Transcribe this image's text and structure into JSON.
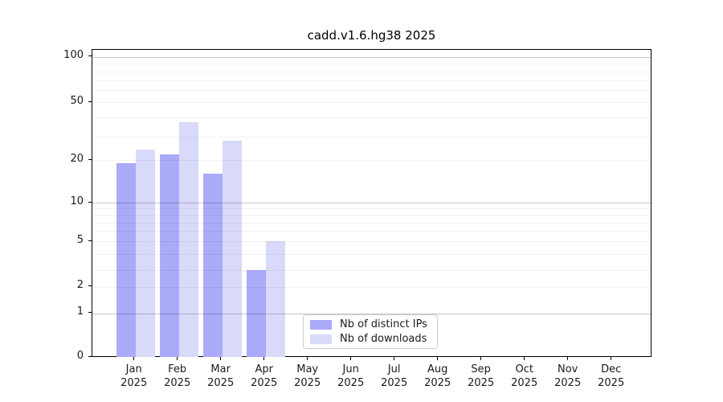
{
  "chart_data": {
    "type": "bar",
    "title": "cadd.v1.6.hg38 2025",
    "x_months": [
      "Jan",
      "Feb",
      "Mar",
      "Apr",
      "May",
      "Jun",
      "Jul",
      "Aug",
      "Sep",
      "Oct",
      "Nov",
      "Dec"
    ],
    "x_year": "2025",
    "series": [
      {
        "name": "Nb of distinct IPs",
        "color": "#aaaaf9",
        "values": [
          19,
          22,
          16,
          3,
          0,
          0,
          0,
          0,
          0,
          0,
          0,
          0
        ]
      },
      {
        "name": "Nb of downloads",
        "color": "#d9d9fa",
        "values": [
          24,
          37,
          28,
          5,
          0,
          0,
          0,
          0,
          0,
          0,
          0,
          0
        ]
      }
    ],
    "yscale": "symlog",
    "ylim": [
      0,
      100
    ],
    "y_ticks": [
      0,
      1,
      2,
      5,
      10,
      20,
      50,
      100
    ],
    "grid": true,
    "legend_position": "lower center"
  }
}
